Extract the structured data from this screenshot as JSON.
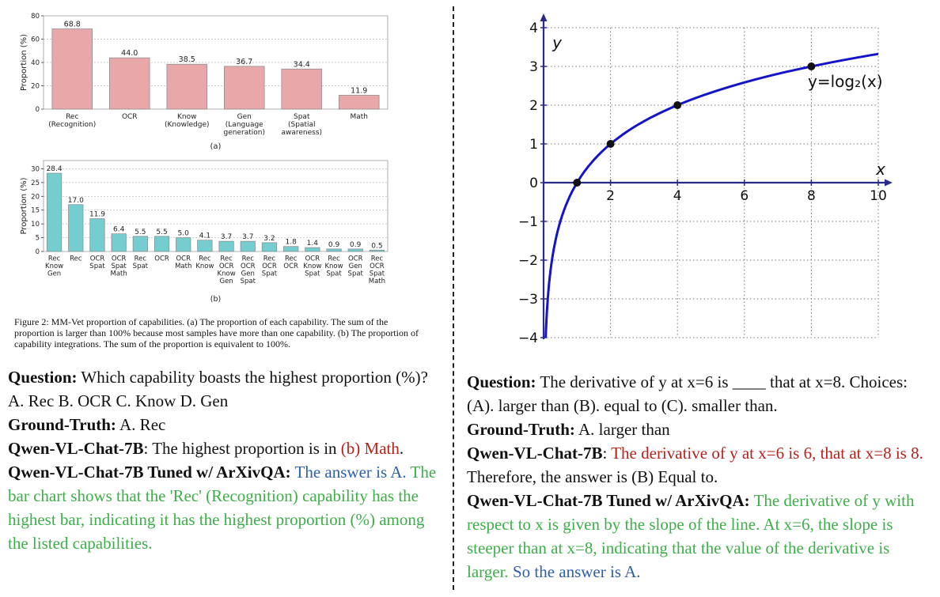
{
  "chart_data": [
    {
      "type": "bar",
      "title": "",
      "subfigure_label": "(a)",
      "ylabel": "Proportion (%)",
      "xlabel": "",
      "ylim": [
        0,
        80
      ],
      "yticks": [
        "0",
        "20",
        "40",
        "60",
        "80"
      ],
      "grid": true,
      "bar_color": "#e8a7a8",
      "categories": [
        [
          "Rec",
          "(Recognition)"
        ],
        [
          "OCR"
        ],
        [
          "Know",
          "(Knowledge)"
        ],
        [
          "Gen",
          "(Language",
          "generation)"
        ],
        [
          "Spat",
          "(Spatial",
          "awareness)"
        ],
        [
          "Math"
        ]
      ],
      "values": [
        68.8,
        44.0,
        38.5,
        36.7,
        34.4,
        11.9
      ],
      "value_labels": [
        "68.8",
        "44.0",
        "38.5",
        "36.7",
        "34.4",
        "11.9"
      ]
    },
    {
      "type": "bar",
      "title": "",
      "subfigure_label": "(b)",
      "ylabel": "Proportion (%)",
      "xlabel": "",
      "ylim": [
        0,
        33
      ],
      "yticks": [
        "0",
        "5",
        "10",
        "15",
        "20",
        "25",
        "30"
      ],
      "grid": true,
      "bar_color": "#76cdd0",
      "categories": [
        [
          "Rec",
          "Know",
          "Gen"
        ],
        [
          "Rec"
        ],
        [
          "OCR",
          "Spat"
        ],
        [
          "OCR",
          "Spat",
          "Math"
        ],
        [
          "Rec",
          "Spat"
        ],
        [
          "OCR"
        ],
        [
          "OCR",
          "Math"
        ],
        [
          "Rec",
          "Know"
        ],
        [
          "Rec",
          "OCR",
          "Know",
          "Gen"
        ],
        [
          "Rec",
          "OCR",
          "Gen",
          "Spat"
        ],
        [
          "Rec",
          "OCR",
          "Spat"
        ],
        [
          "Rec",
          "OCR"
        ],
        [
          "OCR",
          "Know",
          "Spat"
        ],
        [
          "Rec",
          "Know",
          "Spat"
        ],
        [
          "OCR",
          "Gen",
          "Spat"
        ],
        [
          "Rec",
          "OCR",
          "Spat",
          "Math"
        ]
      ],
      "values": [
        28.4,
        17.0,
        11.9,
        6.4,
        5.5,
        5.5,
        5.0,
        4.1,
        3.7,
        3.7,
        3.2,
        1.8,
        1.4,
        0.9,
        0.9,
        0.5
      ],
      "value_labels": [
        "28.4",
        "17.0",
        "11.9",
        "6.4",
        "5.5",
        "5.5",
        "5.0",
        "4.1",
        "3.7",
        "3.7",
        "3.2",
        "1.8",
        "1.4",
        "0.9",
        "0.9",
        "0.5"
      ]
    },
    {
      "type": "line",
      "title": "",
      "xlabel": "x",
      "ylabel": "y",
      "xlim": [
        0,
        10
      ],
      "ylim": [
        -4,
        4
      ],
      "xticks": [
        "2",
        "4",
        "6",
        "8",
        "10"
      ],
      "yticks": [
        "4",
        "3",
        "2",
        "1",
        "0",
        "−1",
        "−2",
        "−3",
        "−4"
      ],
      "grid": true,
      "curve_color": "#1414c8",
      "function_label": "y=log₂(x)",
      "series": [
        {
          "function": "log2",
          "x_range": [
            0.0625,
            10
          ]
        }
      ],
      "marked_points": [
        {
          "x": 1,
          "y": 0
        },
        {
          "x": 2,
          "y": 1
        },
        {
          "x": 4,
          "y": 2
        },
        {
          "x": 8,
          "y": 3
        }
      ]
    }
  ],
  "caption": "Figure 2: MM-Vet proportion of capabilities. (a) The proportion of each capability. The sum of the proportion is larger than 100% because most samples have more than one capability. (b) The proportion of capability integrations. The sum of the proportion is equivalent to 100%.",
  "left_qa": {
    "question_label": "Question:",
    "question_text": "Which capability boasts the highest proportion (%)? A. Rec B. OCR C. Know D. Gen",
    "gt_label": "Ground-Truth:",
    "gt_text": "A. Rec",
    "base_label": "Qwen-VL-Chat-7B",
    "base_colon": ":",
    "base_text": "The highest proportion is in",
    "base_wrong": "(b) Math",
    "base_end": ".",
    "tuned_label": "Qwen-VL-Chat-7B Tuned w/ ArXivQA:",
    "tuned_answer": "The answer is A.",
    "tuned_reason": "The bar chart shows that the 'Rec' (Recognition) capability has the highest bar, indicating it has the highest proportion (%) among the listed capabilities."
  },
  "right_qa": {
    "question_label": "Question:",
    "question_text": "The derivative of y at x=6 is ____ that at x=8. Choices: (A). larger than (B). equal to (C). smaller than.",
    "gt_label": "Ground-Truth:",
    "gt_text": "A. larger than",
    "base_label": "Qwen-VL-Chat-7B",
    "base_colon": ":",
    "base_wrong": "The derivative of y at x=6 is 6, that at x=8 is 8.",
    "base_text": "Therefore, the answer is (B) Equal to.",
    "tuned_label": "Qwen-VL-Chat-7B Tuned w/ ArXivQA:",
    "tuned_reason": "The derivative of y with respect to x is given by the slope of the line. At x=6, the slope is steeper than at x=8, indicating that the value of the derivative is larger.",
    "tuned_answer": "So the answer is A."
  }
}
